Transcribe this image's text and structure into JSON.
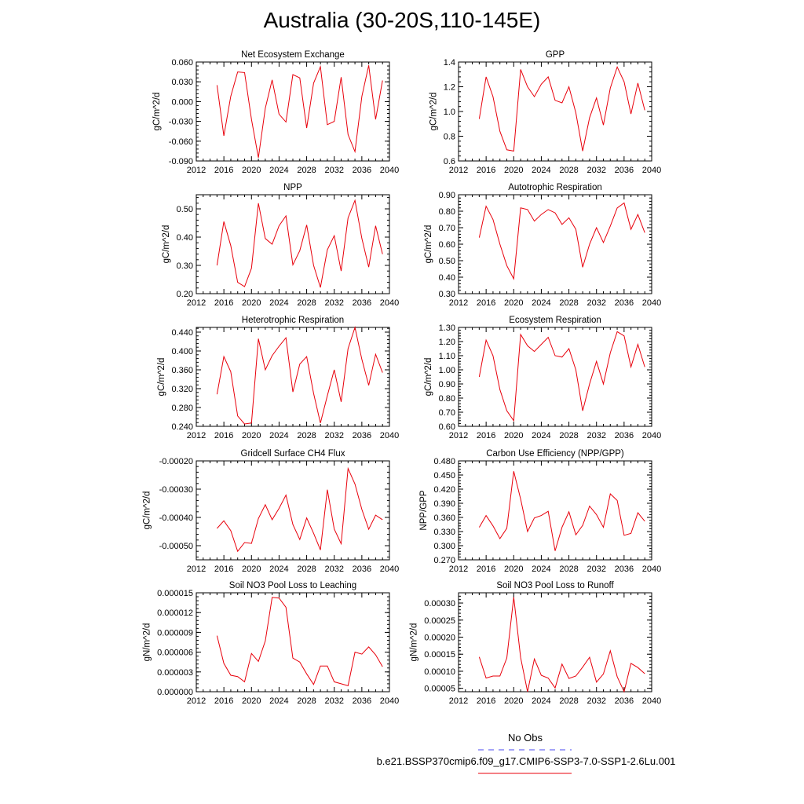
{
  "title": "Australia (30-20S,110-145E)",
  "colors": {
    "series": "#e8000b",
    "obs": "#4a4af0",
    "axis": "#000000"
  },
  "legend": {
    "obs_label": "No Obs",
    "model_label": "b.e21.BSSP370cmip6.f09_g17.CMIP6-SSP3-7.0-SSP1-2.6Lu.001"
  },
  "chart_data": [
    {
      "type": "line",
      "title": "Net Ecosystem Exchange",
      "ylabel": "gC/m^2/d",
      "xlabel": "",
      "xlim": [
        2012,
        2040
      ],
      "ylim": [
        -0.09,
        0.06
      ],
      "yticks": [
        -0.09,
        -0.06,
        -0.03,
        0.0,
        0.03,
        0.06
      ],
      "ytick_labels": [
        "-0.090",
        "-0.060",
        "-0.030",
        "0.000",
        "0.030",
        "0.060"
      ],
      "xticks": [
        2012,
        2016,
        2020,
        2024,
        2028,
        2032,
        2036,
        2040
      ],
      "x": [
        2015,
        2016,
        2017,
        2018,
        2019,
        2020,
        2021,
        2022,
        2023,
        2024,
        2025,
        2026,
        2027,
        2028,
        2029,
        2030,
        2031,
        2032,
        2033,
        2034,
        2035,
        2036,
        2037,
        2038,
        2039
      ],
      "y": [
        0.025,
        -0.052,
        0.008,
        0.045,
        0.044,
        -0.027,
        -0.085,
        -0.01,
        0.033,
        -0.019,
        -0.031,
        0.041,
        0.036,
        -0.04,
        0.028,
        0.053,
        -0.035,
        -0.03,
        0.037,
        -0.05,
        -0.076,
        0.008,
        0.055,
        -0.027,
        0.032
      ]
    },
    {
      "type": "line",
      "title": "GPP",
      "ylabel": "gC/m^2/d",
      "xlabel": "",
      "xlim": [
        2012,
        2040
      ],
      "ylim": [
        0.6,
        1.4
      ],
      "yticks": [
        0.6,
        0.8,
        1.0,
        1.2,
        1.4
      ],
      "ytick_labels": [
        "0.6",
        "0.8",
        "1.0",
        "1.2",
        "1.4"
      ],
      "xticks": [
        2012,
        2016,
        2020,
        2024,
        2028,
        2032,
        2036,
        2040
      ],
      "x": [
        2015,
        2016,
        2017,
        2018,
        2019,
        2020,
        2021,
        2022,
        2023,
        2024,
        2025,
        2026,
        2027,
        2028,
        2029,
        2030,
        2031,
        2032,
        2033,
        2034,
        2035,
        2036,
        2037,
        2038,
        2039
      ],
      "y": [
        0.94,
        1.28,
        1.12,
        0.84,
        0.69,
        0.68,
        1.34,
        1.2,
        1.12,
        1.22,
        1.28,
        1.09,
        1.07,
        1.2,
        0.99,
        0.68,
        0.95,
        1.11,
        0.89,
        1.19,
        1.36,
        1.24,
        0.98,
        1.23,
        1.01
      ]
    },
    {
      "type": "line",
      "title": "NPP",
      "ylabel": "gC/m^2/d",
      "xlabel": "",
      "xlim": [
        2012,
        2040
      ],
      "ylim": [
        0.2,
        0.55
      ],
      "yticks": [
        0.2,
        0.3,
        0.4,
        0.5
      ],
      "ytick_labels": [
        "0.20",
        "0.30",
        "0.40",
        "0.50"
      ],
      "xticks": [
        2012,
        2016,
        2020,
        2024,
        2028,
        2032,
        2036,
        2040
      ],
      "x": [
        2015,
        2016,
        2017,
        2018,
        2019,
        2020,
        2021,
        2022,
        2023,
        2024,
        2025,
        2026,
        2027,
        2028,
        2029,
        2030,
        2031,
        2032,
        2033,
        2034,
        2035,
        2036,
        2037,
        2038,
        2039
      ],
      "y": [
        0.3,
        0.455,
        0.37,
        0.24,
        0.225,
        0.29,
        0.52,
        0.395,
        0.375,
        0.44,
        0.475,
        0.302,
        0.352,
        0.443,
        0.3,
        0.222,
        0.355,
        0.405,
        0.28,
        0.468,
        0.53,
        0.395,
        0.294,
        0.44,
        0.34
      ]
    },
    {
      "type": "line",
      "title": "Autotrophic Respiration",
      "ylabel": "gC/m^2/d",
      "xlabel": "",
      "xlim": [
        2012,
        2040
      ],
      "ylim": [
        0.3,
        0.9
      ],
      "yticks": [
        0.3,
        0.4,
        0.5,
        0.6,
        0.7,
        0.8,
        0.9
      ],
      "ytick_labels": [
        "0.30",
        "0.40",
        "0.50",
        "0.60",
        "0.70",
        "0.80",
        "0.90"
      ],
      "xticks": [
        2012,
        2016,
        2020,
        2024,
        2028,
        2032,
        2036,
        2040
      ],
      "x": [
        2015,
        2016,
        2017,
        2018,
        2019,
        2020,
        2021,
        2022,
        2023,
        2024,
        2025,
        2026,
        2027,
        2028,
        2029,
        2030,
        2031,
        2032,
        2033,
        2034,
        2035,
        2036,
        2037,
        2038,
        2039
      ],
      "y": [
        0.64,
        0.83,
        0.75,
        0.6,
        0.47,
        0.39,
        0.82,
        0.81,
        0.74,
        0.78,
        0.81,
        0.79,
        0.72,
        0.76,
        0.69,
        0.46,
        0.6,
        0.7,
        0.61,
        0.71,
        0.82,
        0.85,
        0.69,
        0.78,
        0.67
      ]
    },
    {
      "type": "line",
      "title": "Heterotrophic Respiration",
      "ylabel": "gC/m^2/d",
      "xlabel": "",
      "xlim": [
        2012,
        2040
      ],
      "ylim": [
        0.24,
        0.45
      ],
      "yticks": [
        0.24,
        0.28,
        0.32,
        0.36,
        0.4,
        0.44
      ],
      "ytick_labels": [
        "0.240",
        "0.280",
        "0.320",
        "0.360",
        "0.400",
        "0.440"
      ],
      "xticks": [
        2012,
        2016,
        2020,
        2024,
        2028,
        2032,
        2036,
        2040
      ],
      "x": [
        2015,
        2016,
        2017,
        2018,
        2019,
        2020,
        2021,
        2022,
        2023,
        2024,
        2025,
        2026,
        2027,
        2028,
        2029,
        2030,
        2031,
        2032,
        2033,
        2034,
        2035,
        2036,
        2037,
        2038,
        2039
      ],
      "y": [
        0.308,
        0.388,
        0.356,
        0.262,
        0.245,
        0.247,
        0.426,
        0.36,
        0.39,
        0.41,
        0.428,
        0.313,
        0.372,
        0.388,
        0.31,
        0.247,
        0.305,
        0.36,
        0.292,
        0.405,
        0.45,
        0.382,
        0.327,
        0.393,
        0.354
      ]
    },
    {
      "type": "line",
      "title": "Ecosystem Respiration",
      "ylabel": "gC/m^2/d",
      "xlabel": "",
      "xlim": [
        2012,
        2040
      ],
      "ylim": [
        0.6,
        1.3
      ],
      "yticks": [
        0.6,
        0.7,
        0.8,
        0.9,
        1.0,
        1.1,
        1.2,
        1.3
      ],
      "ytick_labels": [
        "0.60",
        "0.70",
        "0.80",
        "0.90",
        "1.00",
        "1.10",
        "1.20",
        "1.30"
      ],
      "xticks": [
        2012,
        2016,
        2020,
        2024,
        2028,
        2032,
        2036,
        2040
      ],
      "x": [
        2015,
        2016,
        2017,
        2018,
        2019,
        2020,
        2021,
        2022,
        2023,
        2024,
        2025,
        2026,
        2027,
        2028,
        2029,
        2030,
        2031,
        2032,
        2033,
        2034,
        2035,
        2036,
        2037,
        2038,
        2039
      ],
      "y": [
        0.95,
        1.21,
        1.1,
        0.86,
        0.71,
        0.64,
        1.25,
        1.17,
        1.13,
        1.18,
        1.23,
        1.1,
        1.09,
        1.15,
        1.0,
        0.71,
        0.9,
        1.06,
        0.9,
        1.12,
        1.27,
        1.24,
        1.02,
        1.18,
        1.02
      ]
    },
    {
      "type": "line",
      "title": "Gridcell Surface CH4 Flux",
      "ylabel": "gC/m^2/d",
      "xlabel": "",
      "xlim": [
        2012,
        2040
      ],
      "ylim": [
        -0.00055,
        -0.0002
      ],
      "yticks": [
        -0.0005,
        -0.0004,
        -0.0003,
        -0.0002
      ],
      "ytick_labels": [
        "-0.00050",
        "-0.00040",
        "-0.00030",
        "-0.00020"
      ],
      "xticks": [
        2012,
        2016,
        2020,
        2024,
        2028,
        2032,
        2036,
        2040
      ],
      "x": [
        2015,
        2016,
        2017,
        2018,
        2019,
        2020,
        2021,
        2022,
        2023,
        2024,
        2025,
        2026,
        2027,
        2028,
        2029,
        2030,
        2031,
        2032,
        2033,
        2034,
        2035,
        2036,
        2037,
        2038,
        2039
      ],
      "y": [
        -0.000439,
        -0.000412,
        -0.000447,
        -0.00052,
        -0.000489,
        -0.000492,
        -0.000404,
        -0.000355,
        -0.000408,
        -0.000368,
        -0.000321,
        -0.000425,
        -0.000478,
        -0.000402,
        -0.000456,
        -0.000515,
        -0.000302,
        -0.000441,
        -0.000493,
        -0.000227,
        -0.000282,
        -0.000372,
        -0.000442,
        -0.000392,
        -0.000408
      ]
    },
    {
      "type": "line",
      "title": "Carbon Use Efficiency (NPP/GPP)",
      "ylabel": "NPP/GPP",
      "xlabel": "",
      "xlim": [
        2012,
        2040
      ],
      "ylim": [
        0.27,
        0.48
      ],
      "yticks": [
        0.27,
        0.3,
        0.33,
        0.36,
        0.39,
        0.42,
        0.45,
        0.48
      ],
      "ytick_labels": [
        "0.270",
        "0.300",
        "0.330",
        "0.360",
        "0.390",
        "0.420",
        "0.450",
        "0.480"
      ],
      "xticks": [
        2012,
        2016,
        2020,
        2024,
        2028,
        2032,
        2036,
        2040
      ],
      "x": [
        2015,
        2016,
        2017,
        2018,
        2019,
        2020,
        2021,
        2022,
        2023,
        2024,
        2025,
        2026,
        2027,
        2028,
        2029,
        2030,
        2031,
        2032,
        2033,
        2034,
        2035,
        2036,
        2037,
        2038,
        2039
      ],
      "y": [
        0.339,
        0.364,
        0.342,
        0.315,
        0.337,
        0.458,
        0.399,
        0.33,
        0.359,
        0.364,
        0.373,
        0.289,
        0.339,
        0.372,
        0.323,
        0.343,
        0.384,
        0.366,
        0.339,
        0.41,
        0.396,
        0.322,
        0.326,
        0.37,
        0.352
      ]
    },
    {
      "type": "line",
      "title": "Soil NO3 Pool Loss to Leaching",
      "ylabel": "gN/m^2/d",
      "xlabel": "",
      "xlim": [
        2012,
        2040
      ],
      "ylim": [
        0.0,
        1.5e-05
      ],
      "yticks": [
        0.0,
        3e-06,
        6e-06,
        9e-06,
        1.2e-05,
        1.5e-05
      ],
      "ytick_labels": [
        "0.000000",
        "0.000003",
        "0.000006",
        "0.000009",
        "0.000012",
        "0.000015"
      ],
      "xticks": [
        2012,
        2016,
        2020,
        2024,
        2028,
        2032,
        2036,
        2040
      ],
      "x": [
        2015,
        2016,
        2017,
        2018,
        2019,
        2020,
        2021,
        2022,
        2023,
        2024,
        2025,
        2026,
        2027,
        2028,
        2029,
        2030,
        2031,
        2032,
        2033,
        2034,
        2035,
        2036,
        2037,
        2038,
        2039
      ],
      "y": [
        8.5e-06,
        4.3e-06,
        2.5e-06,
        2.3e-06,
        1.5e-06,
        5.8e-06,
        4.6e-06,
        7.7e-06,
        1.43e-05,
        1.42e-05,
        1.28e-05,
        5.1e-06,
        4.5e-06,
        2.7e-06,
        1.1e-06,
        3.9e-06,
        3.9e-06,
        1.5e-06,
        1.2e-06,
        9e-07,
        6e-06,
        5.7e-06,
        6.8e-06,
        5.6e-06,
        3.8e-06
      ]
    },
    {
      "type": "line",
      "title": "Soil NO3 Pool Loss to Runoff",
      "ylabel": "gN/m^2/d",
      "xlabel": "",
      "xlim": [
        2012,
        2040
      ],
      "ylim": [
        4e-05,
        0.00033
      ],
      "yticks": [
        5e-05,
        0.0001,
        0.00015,
        0.0002,
        0.00025,
        0.0003
      ],
      "ytick_labels": [
        "0.00005",
        "0.00010",
        "0.00015",
        "0.00020",
        "0.00025",
        "0.00030"
      ],
      "xticks": [
        2012,
        2016,
        2020,
        2024,
        2028,
        2032,
        2036,
        2040
      ],
      "x": [
        2015,
        2016,
        2017,
        2018,
        2019,
        2020,
        2021,
        2022,
        2023,
        2024,
        2025,
        2026,
        2027,
        2028,
        2029,
        2030,
        2031,
        2032,
        2033,
        2034,
        2035,
        2036,
        2037,
        2038,
        2039
      ],
      "y": [
        0.000142,
        8e-05,
        8.6e-05,
        8.6e-05,
        0.000139,
        0.000317,
        0.00014,
        4e-05,
        0.000136,
        8.8e-05,
        8e-05,
        5.1e-05,
        0.000121,
        7.9e-05,
        8.6e-05,
        0.000112,
        0.000141,
        6.8e-05,
        9.2e-05,
        0.00016,
        8.4e-05,
        4e-05,
        0.000123,
        0.000111,
        9.3e-05
      ]
    }
  ]
}
